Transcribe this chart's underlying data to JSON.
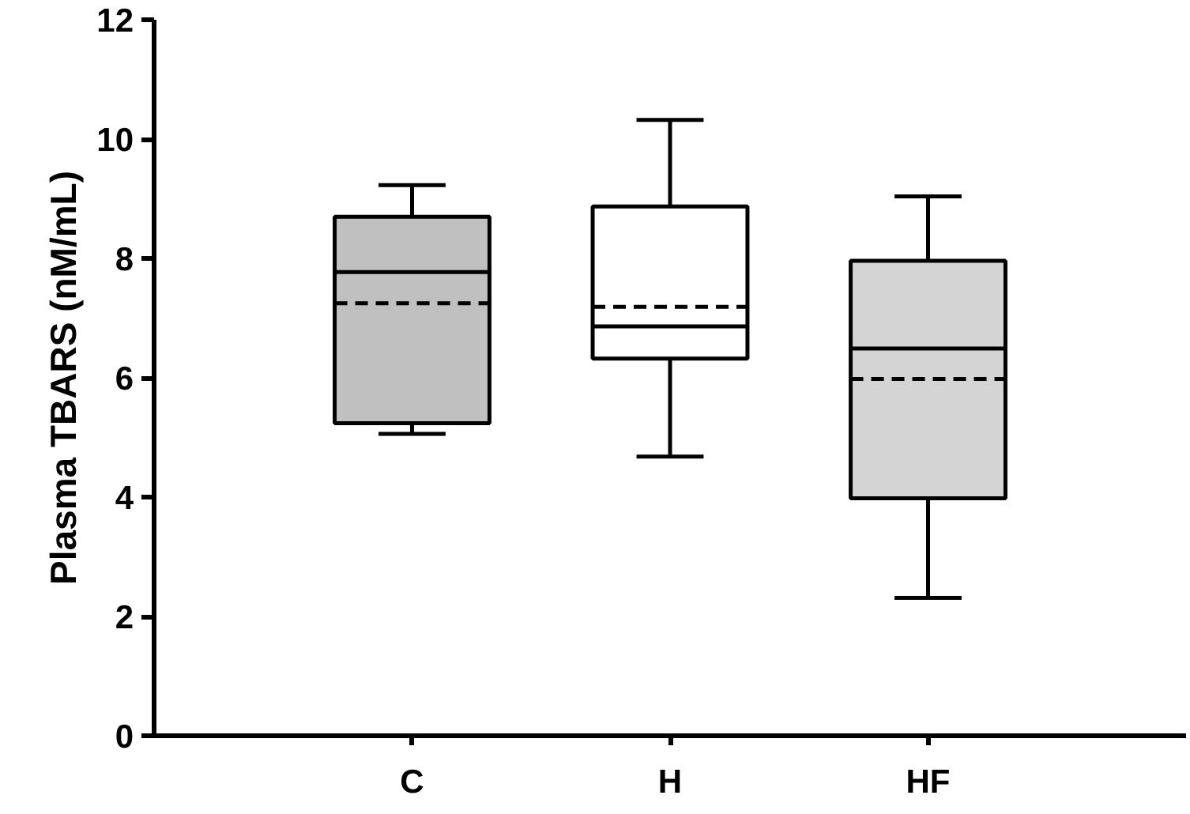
{
  "chart_data": {
    "type": "box",
    "ylabel": "Plasma TBARS (nM/mL)",
    "categories": [
      "C",
      "H",
      "HF"
    ],
    "boxes": [
      {
        "low": 5.06,
        "q1": 5.24,
        "median": 7.77,
        "q3": 8.7,
        "high": 9.23,
        "mean": 7.25
      },
      {
        "low": 4.68,
        "q1": 6.32,
        "median": 6.86,
        "q3": 8.87,
        "high": 10.32,
        "mean": 7.19
      },
      {
        "low": 2.31,
        "q1": 3.98,
        "median": 6.49,
        "q3": 7.96,
        "high": 9.04,
        "mean": 5.98
      }
    ],
    "colors": [
      "#c0c0c0",
      "#ffffff",
      "#d4d4d4"
    ],
    "ylim": [
      0,
      12
    ],
    "yticks": [
      0,
      2,
      4,
      6,
      8,
      10,
      12
    ],
    "grid": false
  }
}
